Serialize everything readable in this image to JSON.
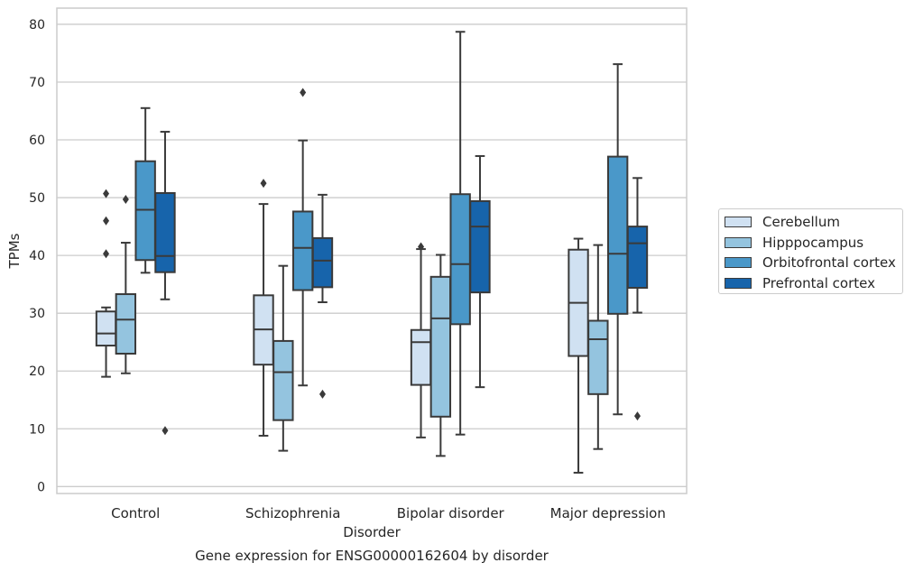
{
  "chart_data": {
    "type": "box",
    "title": "",
    "caption": "Gene expression for ENSG00000162604 by disorder",
    "xlabel": "Disorder",
    "ylabel": "TPMs",
    "ylim": [
      -1.2,
      82.8
    ],
    "yticks": [
      0,
      10,
      20,
      30,
      40,
      50,
      60,
      70,
      80
    ],
    "categories": [
      "Control",
      "Schizophrenia",
      "Bipolar disorder",
      "Major depression"
    ],
    "grid": "horizontal",
    "legend_position": "center-right",
    "series": [
      {
        "name": "Cerebellum",
        "color": "#d0e1f2",
        "boxes": [
          {
            "whisker_low": 19.0,
            "q1": 24.4,
            "median": 26.5,
            "q3": 30.3,
            "whisker_high": 31.0,
            "outliers": [
              40.3,
              46.0,
              50.7
            ]
          },
          {
            "whisker_low": 8.8,
            "q1": 21.1,
            "median": 27.2,
            "q3": 33.1,
            "whisker_high": 48.9,
            "outliers": [
              52.5
            ]
          },
          {
            "whisker_low": 8.5,
            "q1": 17.6,
            "median": 25.0,
            "q3": 27.1,
            "whisker_high": 41.1,
            "outliers": [
              41.5
            ]
          },
          {
            "whisker_low": 2.4,
            "q1": 22.6,
            "median": 31.8,
            "q3": 41.0,
            "whisker_high": 42.9,
            "outliers": []
          }
        ]
      },
      {
        "name": "Hipppocampus",
        "color": "#94c4df",
        "boxes": [
          {
            "whisker_low": 19.6,
            "q1": 23.0,
            "median": 28.9,
            "q3": 33.3,
            "whisker_high": 42.2,
            "outliers": [
              49.7
            ]
          },
          {
            "whisker_low": 6.2,
            "q1": 11.5,
            "median": 19.8,
            "q3": 25.2,
            "whisker_high": 38.2,
            "outliers": []
          },
          {
            "whisker_low": 5.3,
            "q1": 12.1,
            "median": 29.1,
            "q3": 36.3,
            "whisker_high": 40.1,
            "outliers": []
          },
          {
            "whisker_low": 6.5,
            "q1": 16.0,
            "median": 25.5,
            "q3": 28.7,
            "whisker_high": 41.8,
            "outliers": []
          }
        ]
      },
      {
        "name": "Orbitofrontal cortex",
        "color": "#4a98c9",
        "boxes": [
          {
            "whisker_low": 37.0,
            "q1": 39.2,
            "median": 47.9,
            "q3": 56.3,
            "whisker_high": 65.5,
            "outliers": []
          },
          {
            "whisker_low": 17.5,
            "q1": 34.0,
            "median": 41.3,
            "q3": 47.6,
            "whisker_high": 59.9,
            "outliers": [
              68.2
            ]
          },
          {
            "whisker_low": 9.0,
            "q1": 28.1,
            "median": 38.5,
            "q3": 50.6,
            "whisker_high": 78.7,
            "outliers": []
          },
          {
            "whisker_low": 12.5,
            "q1": 29.9,
            "median": 40.3,
            "q3": 57.1,
            "whisker_high": 73.1,
            "outliers": []
          }
        ]
      },
      {
        "name": "Prefrontal cortex",
        "color": "#1764ab",
        "boxes": [
          {
            "whisker_low": 32.4,
            "q1": 37.1,
            "median": 39.9,
            "q3": 50.8,
            "whisker_high": 61.4,
            "outliers": [
              9.7
            ]
          },
          {
            "whisker_low": 31.9,
            "q1": 34.5,
            "median": 39.1,
            "q3": 43.0,
            "whisker_high": 50.5,
            "outliers": [
              16.0
            ]
          },
          {
            "whisker_low": 17.2,
            "q1": 33.6,
            "median": 45.0,
            "q3": 49.4,
            "whisker_high": 57.2,
            "outliers": []
          },
          {
            "whisker_low": 30.1,
            "q1": 34.4,
            "median": 42.1,
            "q3": 45.0,
            "whisker_high": 53.4,
            "outliers": [
              12.2
            ]
          }
        ]
      }
    ]
  }
}
